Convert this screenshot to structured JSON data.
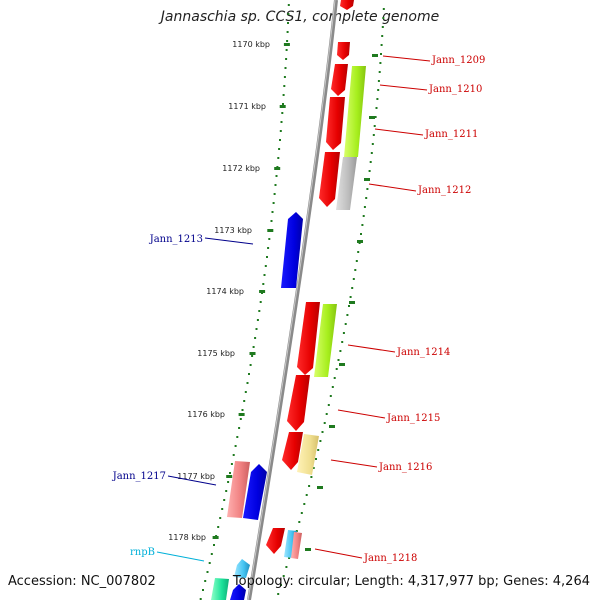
{
  "title": "Jannaschia sp. CCS1, complete genome",
  "footer": {
    "accession": "Accession: NC_007802",
    "summary": "Topology: circular; Length: 4,317,977 bp; Genes: 4,264"
  },
  "colors": {
    "backbone": "#8c8c8c",
    "tick": "#1f7a1f",
    "label_red": "#cc0000",
    "label_blue": "#00008b",
    "label_cyan": "#00b0d8"
  },
  "kbp_labels": [
    "1170 kbp",
    "1171 kbp",
    "1172 kbp",
    "1173 kbp",
    "1174 kbp",
    "1175 kbp",
    "1176 kbp",
    "1177 kbp",
    "1178 kbp"
  ],
  "gene_labels": [
    {
      "name": "Jann_1209",
      "color": "red"
    },
    {
      "name": "Jann_1210",
      "color": "red"
    },
    {
      "name": "Jann_1211",
      "color": "red"
    },
    {
      "name": "Jann_1212",
      "color": "red"
    },
    {
      "name": "Jann_1213",
      "color": "blue"
    },
    {
      "name": "Jann_1214",
      "color": "red"
    },
    {
      "name": "Jann_1215",
      "color": "red"
    },
    {
      "name": "Jann_1216",
      "color": "red"
    },
    {
      "name": "Jann_1217",
      "color": "blue"
    },
    {
      "name": "Jann_1218",
      "color": "red"
    },
    {
      "name": "rnpB",
      "color": "cyan"
    }
  ]
}
